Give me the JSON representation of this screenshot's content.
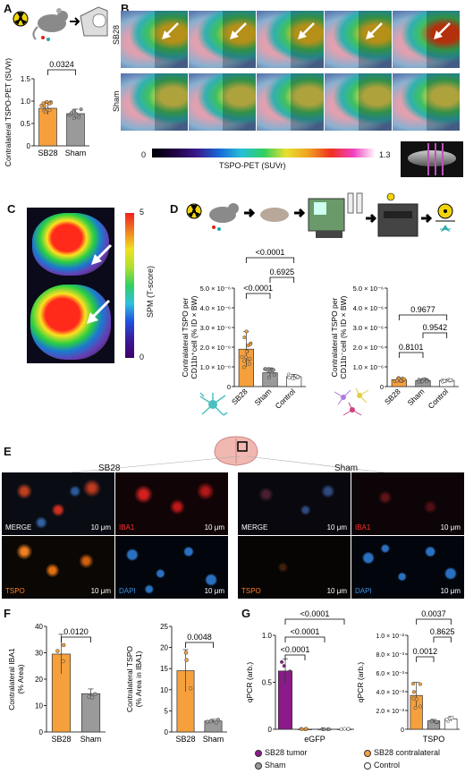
{
  "panels": {
    "A": "A",
    "B": "B",
    "C": "C",
    "D": "D",
    "E": "E",
    "F": "F",
    "G": "G"
  },
  "colors": {
    "sb28": "#f5a03c",
    "sham": "#9a9a9a",
    "control": "#ffffff",
    "purple": "#8b1a8b",
    "bar_edge": "#333333"
  },
  "panel_a": {
    "chart_data": {
      "type": "bar",
      "categories": [
        "SB28",
        "Sham"
      ],
      "values": [
        0.84,
        0.72
      ],
      "ylabel": "Contralateral TSPO-PET (SUVr)",
      "ylim": [
        0,
        1.5
      ],
      "yticks": [
        "0",
        "0.5",
        "1.0",
        "1.5"
      ],
      "pvalue": "0.0324"
    }
  },
  "panel_b": {
    "row_labels": [
      "SB28",
      "Sham"
    ],
    "colorbar_min": "0",
    "colorbar_max": "1.3",
    "colorbar_label": "TSPO-PET (SUVr)"
  },
  "panel_c": {
    "colorbar_min": "0",
    "colorbar_max": "5",
    "colorbar_label": "SPM (T-score)"
  },
  "panel_d": {
    "chart_data": [
      {
        "type": "bar",
        "categories": [
          "SB28",
          "Sham",
          "Control"
        ],
        "values": [
          1.9e-06,
          7e-07,
          5e-07
        ],
        "ylabel": "Contralateral TSPO per CD11b+cell (% ID × BW)",
        "ylim": [
          0,
          5e-06
        ],
        "yticks": [
          "0",
          "1.0 × 10⁻⁶",
          "2.0 × 10⁻⁶",
          "3.0 × 10⁻⁶",
          "4.0 × 10⁻⁶",
          "5.0 × 10⁻⁶"
        ],
        "pvalues": [
          "<0.0001",
          "<0.0001",
          "0.6925"
        ]
      },
      {
        "type": "bar",
        "categories": [
          "SB28",
          "Sham",
          "Control"
        ],
        "values": [
          3.5e-07,
          3e-07,
          3e-07
        ],
        "ylabel": "Contralateral TSPO per CD11b−cell (% ID × BW)",
        "ylim": [
          0,
          5e-06
        ],
        "yticks": [
          "0",
          "1.0 × 10⁻⁶",
          "2.0 × 10⁻⁶",
          "3.0 × 10⁻⁶",
          "4.0 × 10⁻⁶",
          "5.0 × 10⁻⁶"
        ],
        "pvalues": [
          "0.9677",
          "0.8101",
          "0.9542"
        ]
      }
    ]
  },
  "panel_e": {
    "groups": [
      "SB28",
      "Sham"
    ],
    "tiles": [
      {
        "label": "MERGE",
        "scale": "10 μm"
      },
      {
        "label": "IBA1",
        "scale": "10 μm"
      },
      {
        "label": "TSPO",
        "scale": "10 μm"
      },
      {
        "label": "DAPI",
        "scale": "10 μm"
      }
    ]
  },
  "panel_f": {
    "chart_data": [
      {
        "type": "bar",
        "categories": [
          "SB28",
          "Sham"
        ],
        "values": [
          29.5,
          14.5
        ],
        "ylabel": "Contralateral IBA1 (% Area)",
        "ylim": [
          0,
          40
        ],
        "yticks": [
          "0",
          "10",
          "20",
          "30",
          "40"
        ],
        "pvalue": "0.0120"
      },
      {
        "type": "bar",
        "categories": [
          "SB28",
          "Sham"
        ],
        "values": [
          14.5,
          2.6
        ],
        "ylabel": "Contralateral TSPO (% Area in IBA1)",
        "ylim": [
          0,
          25
        ],
        "yticks": [
          "0",
          "5",
          "10",
          "15",
          "20",
          "25"
        ],
        "pvalue": "0.0048"
      }
    ]
  },
  "panel_g": {
    "chart_data": [
      {
        "type": "bar",
        "xlabel": "eGFP",
        "categories": [
          "SB28 tumor",
          "SB28 contralateral",
          "Sham",
          "Control"
        ],
        "values": [
          0.62,
          0.0,
          0.0,
          0.0
        ],
        "ylabel": "qPCR (arb.)",
        "ylim": [
          0,
          1.0
        ],
        "yticks": [
          "0",
          "0.5",
          "1.0"
        ],
        "pvalues": [
          "<0.0001",
          "<0.0001",
          "<0.0001"
        ]
      },
      {
        "type": "bar",
        "xlabel": "TSPO",
        "categories": [
          "SB28 contralateral",
          "Sham",
          "Control"
        ],
        "values": [
          0.0036,
          0.0009,
          0.0011
        ],
        "ylabel": "qPCR (arb.)",
        "ylim": [
          0,
          0.01
        ],
        "yticks": [
          "0",
          "2.0 × 10⁻³",
          "4.0 × 10⁻³",
          "6.0 × 10⁻³",
          "8.0 × 10⁻³",
          "1.0 × 10⁻²"
        ],
        "pvalues": [
          "0.0037",
          "0.0012",
          "0.8625"
        ]
      }
    ],
    "legend": [
      "SB28 tumor",
      "SB28 contralateral",
      "Sham",
      "Control"
    ]
  }
}
